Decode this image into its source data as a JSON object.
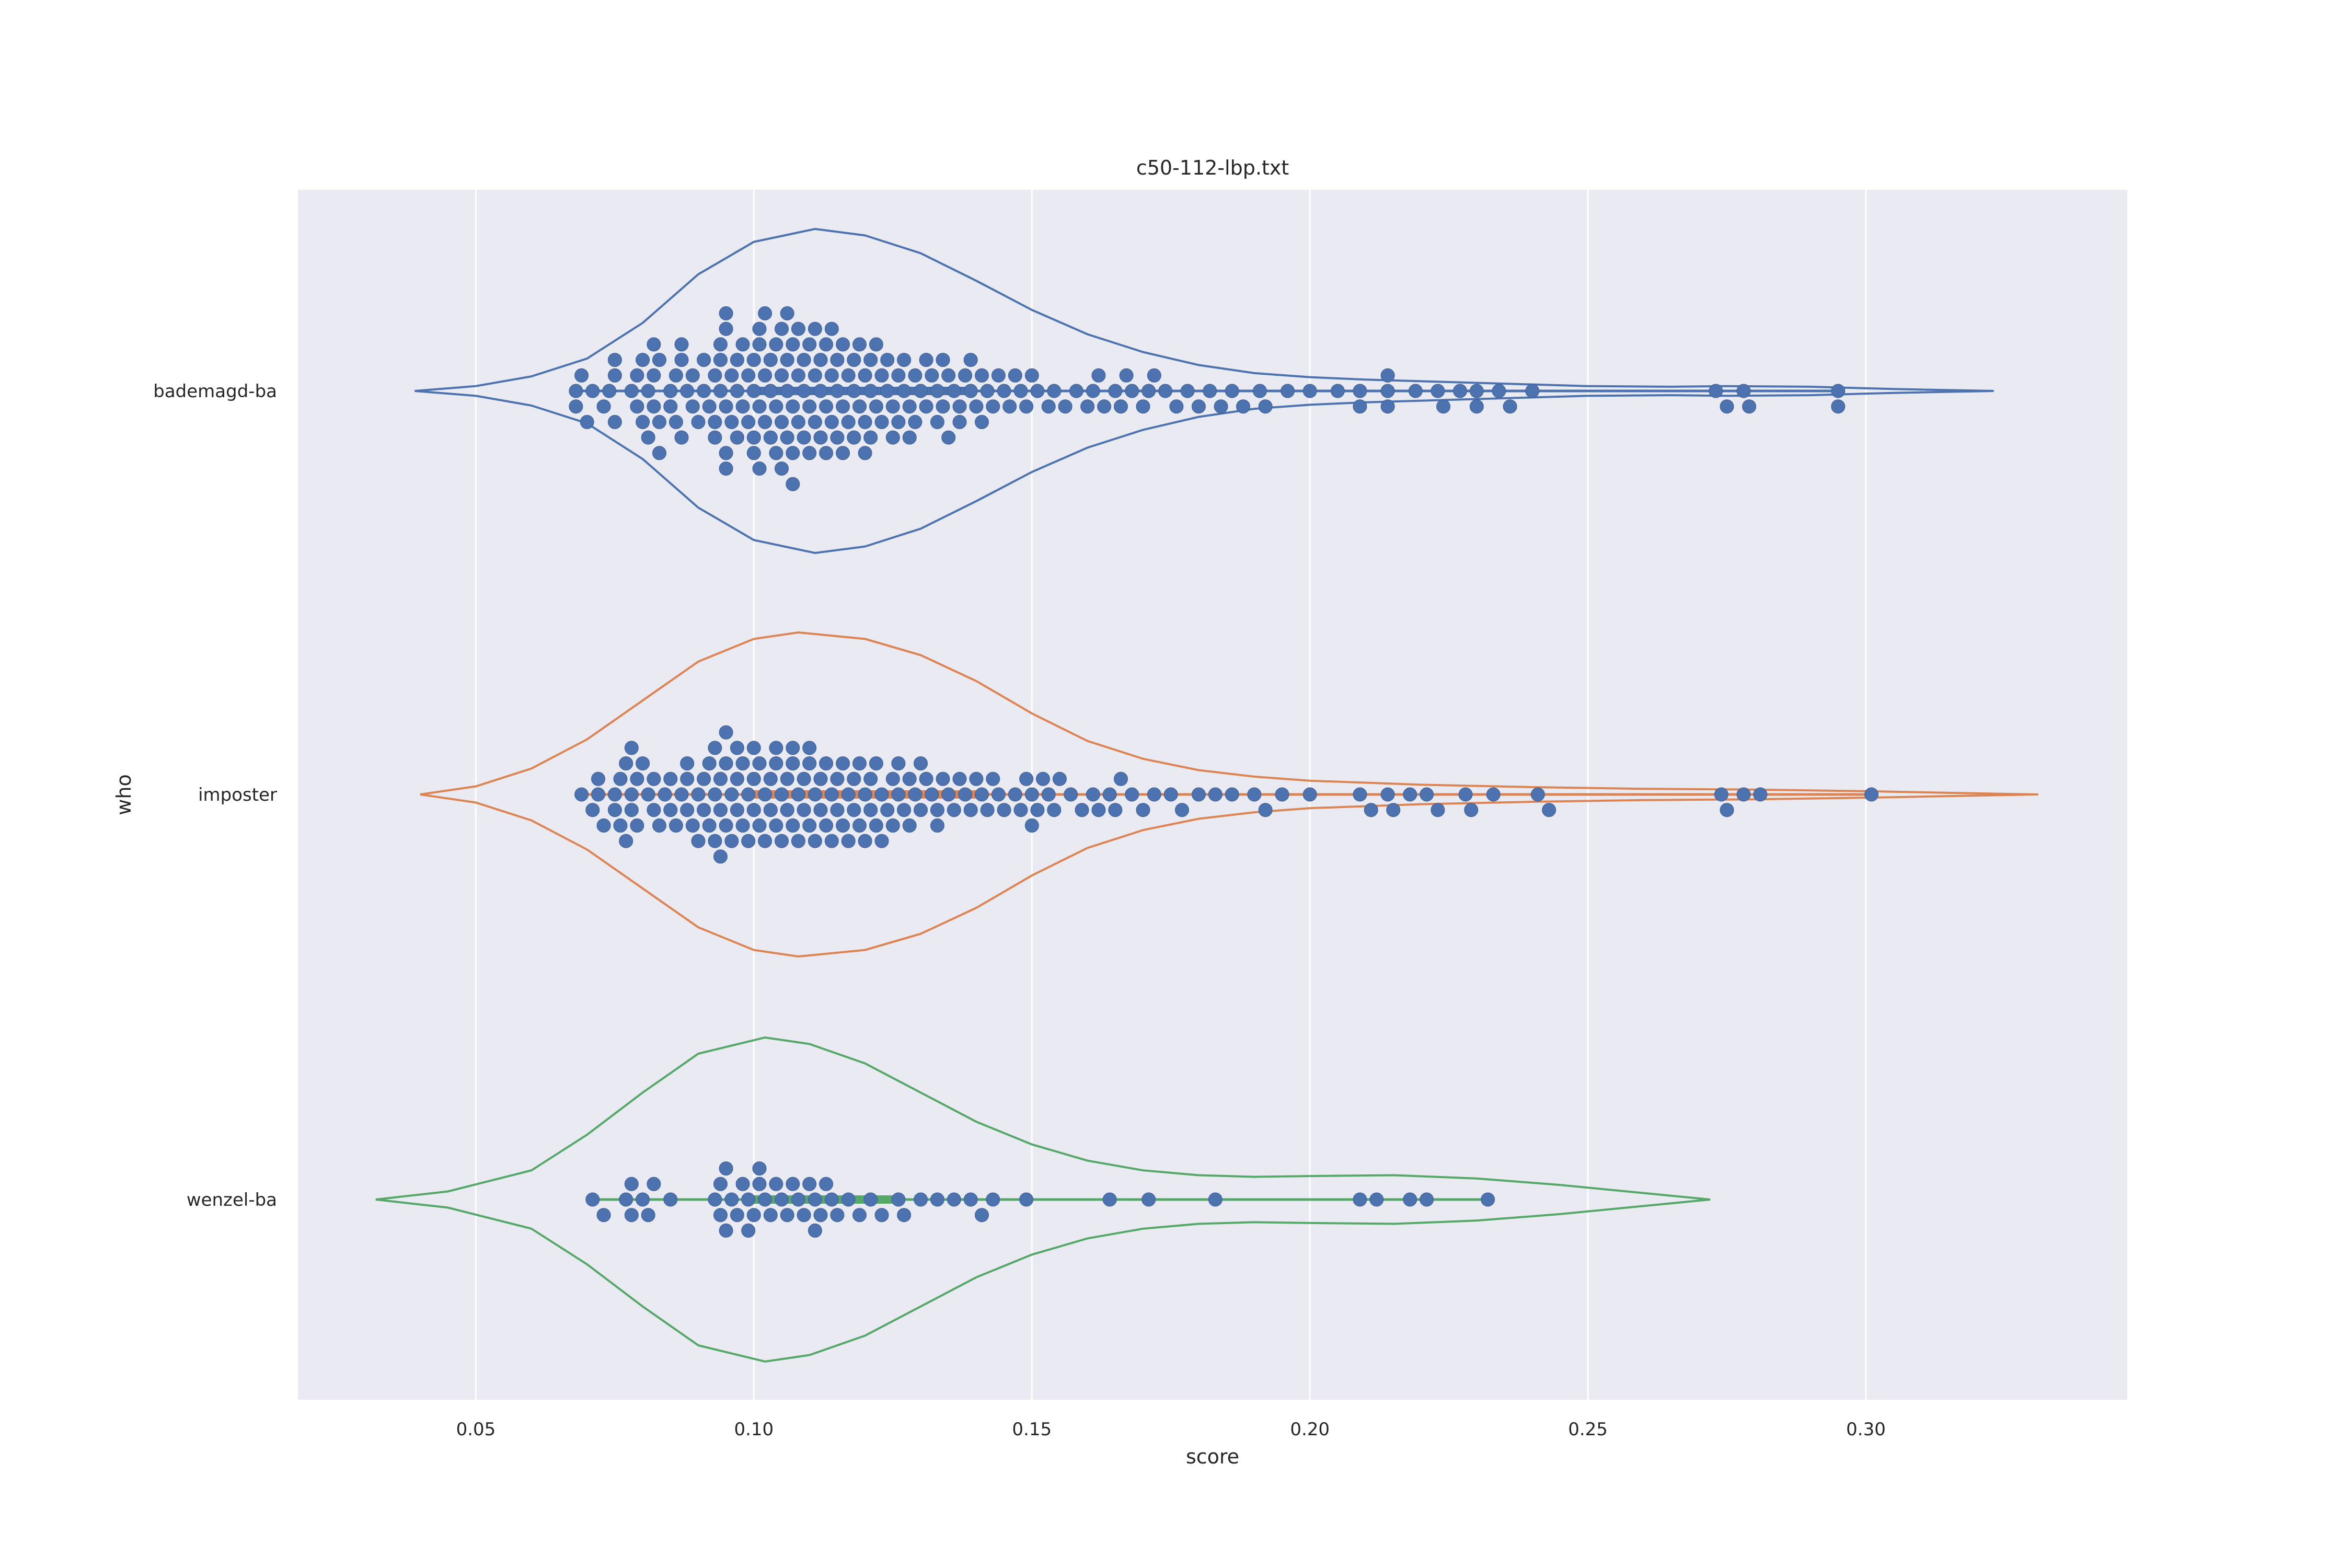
{
  "chart_data": {
    "type": "violin+swarm",
    "title": "c50-112-lbp.txt",
    "xlabel": "score",
    "ylabel": "who",
    "xlim": [
      0.018,
      0.347
    ],
    "xticks": [
      {
        "value": 0.05,
        "label": "0.05"
      },
      {
        "value": 0.1,
        "label": "0.10"
      },
      {
        "value": 0.15,
        "label": "0.15"
      },
      {
        "value": 0.2,
        "label": "0.20"
      },
      {
        "value": 0.25,
        "label": "0.25"
      },
      {
        "value": 0.3,
        "label": "0.30"
      }
    ],
    "grid": "vertical",
    "categories": [
      "bademagd-ba",
      "imposter",
      "wenzel-ba"
    ],
    "point_color": "#4C72B0",
    "background": "#EAEAF2",
    "series": [
      {
        "category": "bademagd-ba",
        "violin_color": "#4C72B0",
        "density_profile": [
          [
            0.039,
            0.0
          ],
          [
            0.05,
            0.03
          ],
          [
            0.06,
            0.09
          ],
          [
            0.07,
            0.2
          ],
          [
            0.08,
            0.42
          ],
          [
            0.09,
            0.72
          ],
          [
            0.1,
            0.92
          ],
          [
            0.111,
            1.0
          ],
          [
            0.12,
            0.96
          ],
          [
            0.13,
            0.85
          ],
          [
            0.14,
            0.68
          ],
          [
            0.15,
            0.5
          ],
          [
            0.16,
            0.35
          ],
          [
            0.17,
            0.24
          ],
          [
            0.18,
            0.16
          ],
          [
            0.19,
            0.11
          ],
          [
            0.2,
            0.085
          ],
          [
            0.21,
            0.07
          ],
          [
            0.22,
            0.06
          ],
          [
            0.23,
            0.05
          ],
          [
            0.25,
            0.03
          ],
          [
            0.265,
            0.026
          ],
          [
            0.275,
            0.03
          ],
          [
            0.29,
            0.026
          ],
          [
            0.305,
            0.012
          ],
          [
            0.323,
            0.0
          ]
        ],
        "points": [
          0.068,
          0.068,
          0.069,
          0.07,
          0.071,
          0.073,
          0.074,
          0.075,
          0.075,
          0.075,
          0.078,
          0.079,
          0.079,
          0.08,
          0.08,
          0.081,
          0.081,
          0.082,
          0.082,
          0.082,
          0.083,
          0.083,
          0.083,
          0.085,
          0.085,
          0.086,
          0.086,
          0.087,
          0.087,
          0.087,
          0.088,
          0.089,
          0.089,
          0.09,
          0.091,
          0.091,
          0.092,
          0.093,
          0.093,
          0.093,
          0.094,
          0.094,
          0.094,
          0.095,
          0.095,
          0.095,
          0.095,
          0.095,
          0.096,
          0.096,
          0.097,
          0.097,
          0.097,
          0.098,
          0.098,
          0.099,
          0.099,
          0.1,
          0.1,
          0.1,
          0.1,
          0.101,
          0.101,
          0.101,
          0.101,
          0.102,
          0.102,
          0.102,
          0.103,
          0.103,
          0.103,
          0.104,
          0.104,
          0.104,
          0.105,
          0.105,
          0.105,
          0.105,
          0.106,
          0.106,
          0.106,
          0.106,
          0.107,
          0.107,
          0.107,
          0.107,
          0.108,
          0.108,
          0.108,
          0.109,
          0.109,
          0.109,
          0.11,
          0.11,
          0.11,
          0.111,
          0.111,
          0.111,
          0.112,
          0.112,
          0.112,
          0.113,
          0.113,
          0.113,
          0.114,
          0.114,
          0.114,
          0.115,
          0.115,
          0.115,
          0.116,
          0.116,
          0.116,
          0.117,
          0.117,
          0.118,
          0.118,
          0.118,
          0.119,
          0.119,
          0.12,
          0.12,
          0.12,
          0.121,
          0.121,
          0.121,
          0.122,
          0.122,
          0.123,
          0.123,
          0.124,
          0.124,
          0.125,
          0.125,
          0.126,
          0.126,
          0.127,
          0.127,
          0.128,
          0.128,
          0.129,
          0.129,
          0.13,
          0.131,
          0.131,
          0.132,
          0.133,
          0.133,
          0.134,
          0.134,
          0.135,
          0.135,
          0.136,
          0.137,
          0.137,
          0.138,
          0.139,
          0.139,
          0.14,
          0.141,
          0.141,
          0.142,
          0.143,
          0.144,
          0.145,
          0.146,
          0.147,
          0.148,
          0.149,
          0.15,
          0.151,
          0.153,
          0.154,
          0.156,
          0.158,
          0.16,
          0.161,
          0.162,
          0.163,
          0.165,
          0.166,
          0.167,
          0.168,
          0.17,
          0.171,
          0.172,
          0.174,
          0.176,
          0.178,
          0.18,
          0.182,
          0.184,
          0.186,
          0.188,
          0.191,
          0.192,
          0.196,
          0.2,
          0.205,
          0.209,
          0.209,
          0.214,
          0.214,
          0.214,
          0.219,
          0.223,
          0.224,
          0.227,
          0.23,
          0.23,
          0.234,
          0.236,
          0.24,
          0.273,
          0.275,
          0.278,
          0.279,
          0.295,
          0.295
        ],
        "median_band": [
          0.1,
          0.14
        ]
      },
      {
        "category": "imposter",
        "violin_color": "#DD8452",
        "density_profile": [
          [
            0.04,
            0.0
          ],
          [
            0.05,
            0.05
          ],
          [
            0.06,
            0.16
          ],
          [
            0.07,
            0.34
          ],
          [
            0.08,
            0.58
          ],
          [
            0.09,
            0.82
          ],
          [
            0.1,
            0.96
          ],
          [
            0.108,
            1.0
          ],
          [
            0.12,
            0.96
          ],
          [
            0.13,
            0.86
          ],
          [
            0.14,
            0.7
          ],
          [
            0.15,
            0.5
          ],
          [
            0.16,
            0.33
          ],
          [
            0.17,
            0.22
          ],
          [
            0.18,
            0.15
          ],
          [
            0.19,
            0.11
          ],
          [
            0.2,
            0.085
          ],
          [
            0.22,
            0.06
          ],
          [
            0.24,
            0.045
          ],
          [
            0.26,
            0.035
          ],
          [
            0.28,
            0.03
          ],
          [
            0.3,
            0.02
          ],
          [
            0.315,
            0.01
          ],
          [
            0.331,
            0.0
          ]
        ],
        "points": [
          0.069,
          0.071,
          0.072,
          0.072,
          0.073,
          0.075,
          0.075,
          0.076,
          0.076,
          0.077,
          0.077,
          0.078,
          0.078,
          0.078,
          0.079,
          0.079,
          0.08,
          0.081,
          0.082,
          0.082,
          0.083,
          0.084,
          0.085,
          0.085,
          0.086,
          0.087,
          0.088,
          0.088,
          0.088,
          0.089,
          0.09,
          0.09,
          0.091,
          0.091,
          0.092,
          0.092,
          0.093,
          0.093,
          0.093,
          0.094,
          0.094,
          0.094,
          0.095,
          0.095,
          0.095,
          0.096,
          0.096,
          0.097,
          0.097,
          0.097,
          0.098,
          0.098,
          0.099,
          0.099,
          0.1,
          0.1,
          0.1,
          0.101,
          0.101,
          0.102,
          0.102,
          0.103,
          0.103,
          0.104,
          0.104,
          0.104,
          0.105,
          0.105,
          0.106,
          0.106,
          0.107,
          0.107,
          0.107,
          0.108,
          0.108,
          0.109,
          0.109,
          0.11,
          0.11,
          0.11,
          0.111,
          0.111,
          0.112,
          0.112,
          0.113,
          0.113,
          0.114,
          0.114,
          0.115,
          0.115,
          0.116,
          0.116,
          0.117,
          0.117,
          0.118,
          0.118,
          0.119,
          0.119,
          0.12,
          0.12,
          0.121,
          0.121,
          0.122,
          0.122,
          0.123,
          0.123,
          0.124,
          0.125,
          0.125,
          0.126,
          0.126,
          0.127,
          0.128,
          0.128,
          0.129,
          0.13,
          0.13,
          0.131,
          0.132,
          0.133,
          0.133,
          0.134,
          0.135,
          0.136,
          0.137,
          0.138,
          0.139,
          0.14,
          0.141,
          0.142,
          0.143,
          0.144,
          0.145,
          0.147,
          0.148,
          0.149,
          0.15,
          0.15,
          0.151,
          0.152,
          0.153,
          0.154,
          0.155,
          0.157,
          0.159,
          0.161,
          0.162,
          0.164,
          0.165,
          0.166,
          0.168,
          0.17,
          0.172,
          0.175,
          0.177,
          0.18,
          0.183,
          0.186,
          0.19,
          0.192,
          0.195,
          0.2,
          0.209,
          0.211,
          0.214,
          0.215,
          0.218,
          0.221,
          0.223,
          0.228,
          0.229,
          0.233,
          0.241,
          0.243,
          0.274,
          0.275,
          0.278,
          0.281,
          0.301
        ],
        "median_band": [
          0.1,
          0.14
        ]
      },
      {
        "category": "wenzel-ba",
        "violin_color": "#55A868",
        "density_profile": [
          [
            0.032,
            0.0
          ],
          [
            0.045,
            0.05
          ],
          [
            0.06,
            0.18
          ],
          [
            0.07,
            0.4
          ],
          [
            0.08,
            0.66
          ],
          [
            0.09,
            0.9
          ],
          [
            0.102,
            1.0
          ],
          [
            0.11,
            0.96
          ],
          [
            0.12,
            0.84
          ],
          [
            0.13,
            0.66
          ],
          [
            0.14,
            0.48
          ],
          [
            0.15,
            0.34
          ],
          [
            0.16,
            0.24
          ],
          [
            0.17,
            0.18
          ],
          [
            0.18,
            0.15
          ],
          [
            0.19,
            0.14
          ],
          [
            0.2,
            0.145
          ],
          [
            0.215,
            0.15
          ],
          [
            0.23,
            0.13
          ],
          [
            0.245,
            0.09
          ],
          [
            0.26,
            0.04
          ],
          [
            0.272,
            0.0
          ]
        ],
        "points": [
          0.071,
          0.073,
          0.077,
          0.078,
          0.078,
          0.08,
          0.081,
          0.082,
          0.085,
          0.093,
          0.094,
          0.094,
          0.095,
          0.095,
          0.096,
          0.097,
          0.098,
          0.099,
          0.099,
          0.1,
          0.101,
          0.101,
          0.102,
          0.103,
          0.104,
          0.105,
          0.106,
          0.107,
          0.108,
          0.109,
          0.11,
          0.111,
          0.111,
          0.112,
          0.113,
          0.114,
          0.115,
          0.117,
          0.119,
          0.121,
          0.123,
          0.126,
          0.127,
          0.13,
          0.133,
          0.136,
          0.139,
          0.141,
          0.143,
          0.149,
          0.164,
          0.171,
          0.183,
          0.209,
          0.212,
          0.218,
          0.221,
          0.232
        ],
        "median_band": [
          0.1,
          0.125
        ]
      }
    ]
  }
}
